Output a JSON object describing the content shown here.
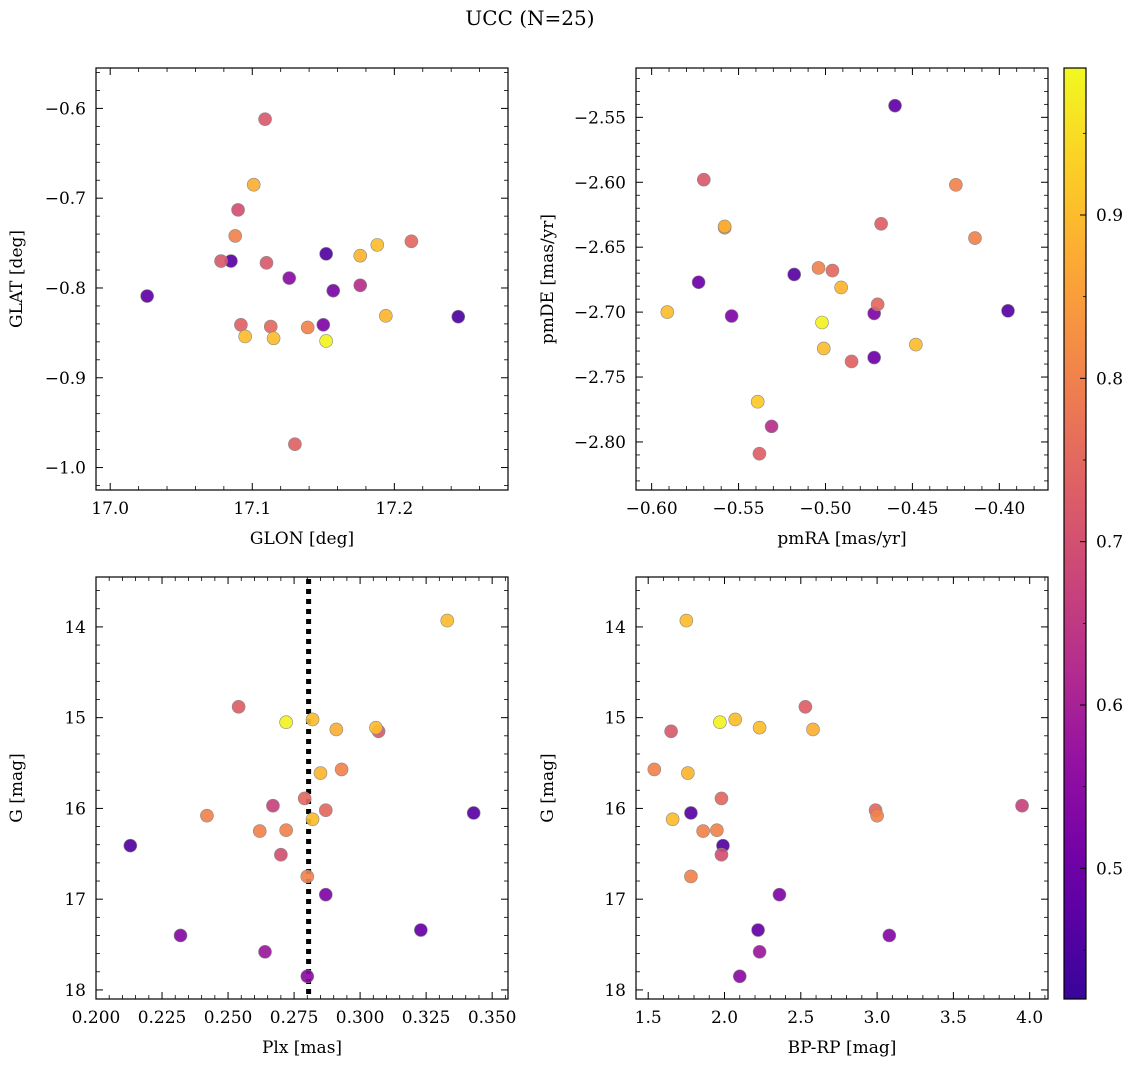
{
  "figure": {
    "suptitle": "UCC (N=25)"
  },
  "chart_data": [
    {
      "type": "scatter",
      "panel": "top-left",
      "xlabel": "GLON [deg]",
      "ylabel": "GLAT [deg]",
      "xlim": [
        16.99,
        17.28
      ],
      "ylim": [
        -1.025,
        -0.555
      ],
      "y_inverted": false,
      "xticks": [
        17.0,
        17.1,
        17.2
      ],
      "xtick_labels": [
        "17.0",
        "17.1",
        "17.2"
      ],
      "yticks": [
        -1.0,
        -0.9,
        -0.8,
        -0.7,
        -0.6
      ],
      "ytick_labels": [
        "−1.0",
        "−0.9",
        "−0.8",
        "−0.7",
        "−0.6"
      ],
      "x": [
        17.109,
        17.101,
        17.09,
        17.088,
        17.078,
        17.085,
        17.11,
        17.126,
        17.152,
        17.026,
        17.157,
        17.176,
        17.176,
        17.188,
        17.212,
        17.245,
        17.194,
        17.092,
        17.095,
        17.113,
        17.115,
        17.139,
        17.15,
        17.152,
        17.13
      ],
      "y": [
        -0.612,
        -0.685,
        -0.713,
        -0.742,
        -0.77,
        -0.77,
        -0.772,
        -0.789,
        -0.762,
        -0.809,
        -0.803,
        -0.764,
        -0.797,
        -0.752,
        -0.748,
        -0.832,
        -0.831,
        -0.841,
        -0.854,
        -0.843,
        -0.856,
        -0.844,
        -0.841,
        -0.859,
        -0.974
      ]
    },
    {
      "type": "scatter",
      "panel": "top-right",
      "xlabel": "pmRA [mas/yr]",
      "ylabel": "pmDE [mas/yr]",
      "xlim": [
        -0.609,
        -0.372
      ],
      "ylim": [
        -2.837,
        -2.512
      ],
      "y_inverted": false,
      "xticks": [
        -0.6,
        -0.55,
        -0.5,
        -0.45,
        -0.4
      ],
      "xtick_labels": [
        "−0.60",
        "−0.55",
        "−0.50",
        "−0.45",
        "−0.40"
      ],
      "yticks": [
        -2.8,
        -2.75,
        -2.7,
        -2.65,
        -2.6,
        -2.55
      ],
      "ytick_labels": [
        "−2.80",
        "−2.75",
        "−2.70",
        "−2.65",
        "−2.60",
        "−2.55"
      ],
      "x": [
        -0.46,
        -0.57,
        -0.425,
        -0.468,
        -0.558,
        -0.558,
        -0.414,
        -0.518,
        -0.573,
        -0.504,
        -0.496,
        -0.491,
        -0.591,
        -0.554,
        -0.47,
        -0.472,
        -0.395,
        -0.502,
        -0.501,
        -0.448,
        -0.472,
        -0.485,
        -0.539,
        -0.531,
        -0.538
      ],
      "y": [
        -2.541,
        -2.598,
        -2.602,
        -2.632,
        -2.634,
        -2.635,
        -2.643,
        -2.671,
        -2.677,
        -2.666,
        -2.668,
        -2.681,
        -2.7,
        -2.703,
        -2.694,
        -2.701,
        -2.699,
        -2.708,
        -2.728,
        -2.725,
        -2.735,
        -2.738,
        -2.769,
        -2.788,
        -2.809
      ]
    },
    {
      "type": "scatter",
      "panel": "bottom-left",
      "xlabel": "Plx [mas]",
      "ylabel": "G [mag]",
      "xlim": [
        0.2,
        0.356
      ],
      "ylim": [
        18.1,
        13.45
      ],
      "y_inverted": true,
      "xticks": [
        0.2,
        0.225,
        0.25,
        0.275,
        0.3,
        0.325,
        0.35
      ],
      "xtick_labels": [
        "0.200",
        "0.225",
        "0.250",
        "0.275",
        "0.300",
        "0.325",
        "0.350"
      ],
      "yticks": [
        14,
        15,
        16,
        17,
        18
      ],
      "ytick_labels": [
        "14",
        "15",
        "16",
        "17",
        "18"
      ],
      "reference_line": {
        "orientation": "vertical",
        "x": 0.2805,
        "style": "dotted"
      },
      "x": [
        0.333,
        0.254,
        0.272,
        0.282,
        0.306,
        0.307,
        0.291,
        0.293,
        0.285,
        0.279,
        0.282,
        0.287,
        0.267,
        0.343,
        0.242,
        0.262,
        0.272,
        0.213,
        0.27,
        0.28,
        0.287,
        0.232,
        0.323,
        0.264,
        0.28
      ],
      "y": [
        13.93,
        14.88,
        15.05,
        15.02,
        15.11,
        15.15,
        15.13,
        15.57,
        15.61,
        15.89,
        16.12,
        16.02,
        15.97,
        16.05,
        16.08,
        16.25,
        16.24,
        16.41,
        16.51,
        16.75,
        16.95,
        17.4,
        17.34,
        17.58,
        17.85
      ]
    },
    {
      "type": "scatter",
      "panel": "bottom-right",
      "xlabel": "BP-RP [mag]",
      "ylabel": "G [mag]",
      "xlim": [
        1.42,
        4.12
      ],
      "ylim": [
        18.1,
        13.45
      ],
      "y_inverted": true,
      "xticks": [
        1.5,
        2.0,
        2.5,
        3.0,
        3.5,
        4.0
      ],
      "xtick_labels": [
        "1.5",
        "2.0",
        "2.5",
        "3.0",
        "3.5",
        "4.0"
      ],
      "yticks": [
        14,
        15,
        16,
        17,
        18
      ],
      "ytick_labels": [
        "14",
        "15",
        "16",
        "17",
        "18"
      ],
      "x": [
        1.75,
        2.53,
        1.97,
        2.07,
        2.23,
        1.65,
        2.58,
        1.54,
        1.76,
        1.98,
        1.66,
        2.99,
        3.95,
        1.78,
        3.0,
        1.86,
        1.95,
        1.99,
        1.98,
        1.78,
        2.36,
        3.08,
        2.22,
        2.23,
        2.1
      ],
      "y": [
        13.93,
        14.88,
        15.05,
        15.02,
        15.11,
        15.15,
        15.13,
        15.57,
        15.61,
        15.89,
        16.12,
        16.02,
        15.97,
        16.05,
        16.08,
        16.25,
        16.24,
        16.41,
        16.51,
        16.75,
        16.95,
        17.4,
        17.34,
        17.58,
        17.85
      ]
    }
  ],
  "colorbar": {
    "cmap": "plasma",
    "range": [
      0.42,
      0.99
    ],
    "ticks": [
      0.5,
      0.6,
      0.7,
      0.8,
      0.9
    ],
    "tick_labels": [
      "0.5",
      "0.6",
      "0.7",
      "0.8",
      "0.9"
    ],
    "values": {
      "top-left": [
        0.72,
        0.88,
        0.7,
        0.8,
        0.72,
        0.47,
        0.72,
        0.55,
        0.46,
        0.48,
        0.52,
        0.89,
        0.63,
        0.9,
        0.75,
        0.45,
        0.89,
        0.74,
        0.9,
        0.75,
        0.9,
        0.8,
        0.53,
        0.98,
        0.74
      ],
      "top-right": [
        0.48,
        0.72,
        0.8,
        0.73,
        0.88,
        0.8,
        0.8,
        0.47,
        0.5,
        0.8,
        0.75,
        0.89,
        0.9,
        0.53,
        0.75,
        0.53,
        0.47,
        0.98,
        0.9,
        0.9,
        0.5,
        0.74,
        0.92,
        0.63,
        0.73
      ],
      "points": [
        0.9,
        0.73,
        0.98,
        0.9,
        0.9,
        0.72,
        0.88,
        0.8,
        0.89,
        0.75,
        0.9,
        0.75,
        0.67,
        0.47,
        0.8,
        0.8,
        0.8,
        0.46,
        0.7,
        0.8,
        0.53,
        0.54,
        0.49,
        0.58,
        0.55
      ]
    }
  }
}
